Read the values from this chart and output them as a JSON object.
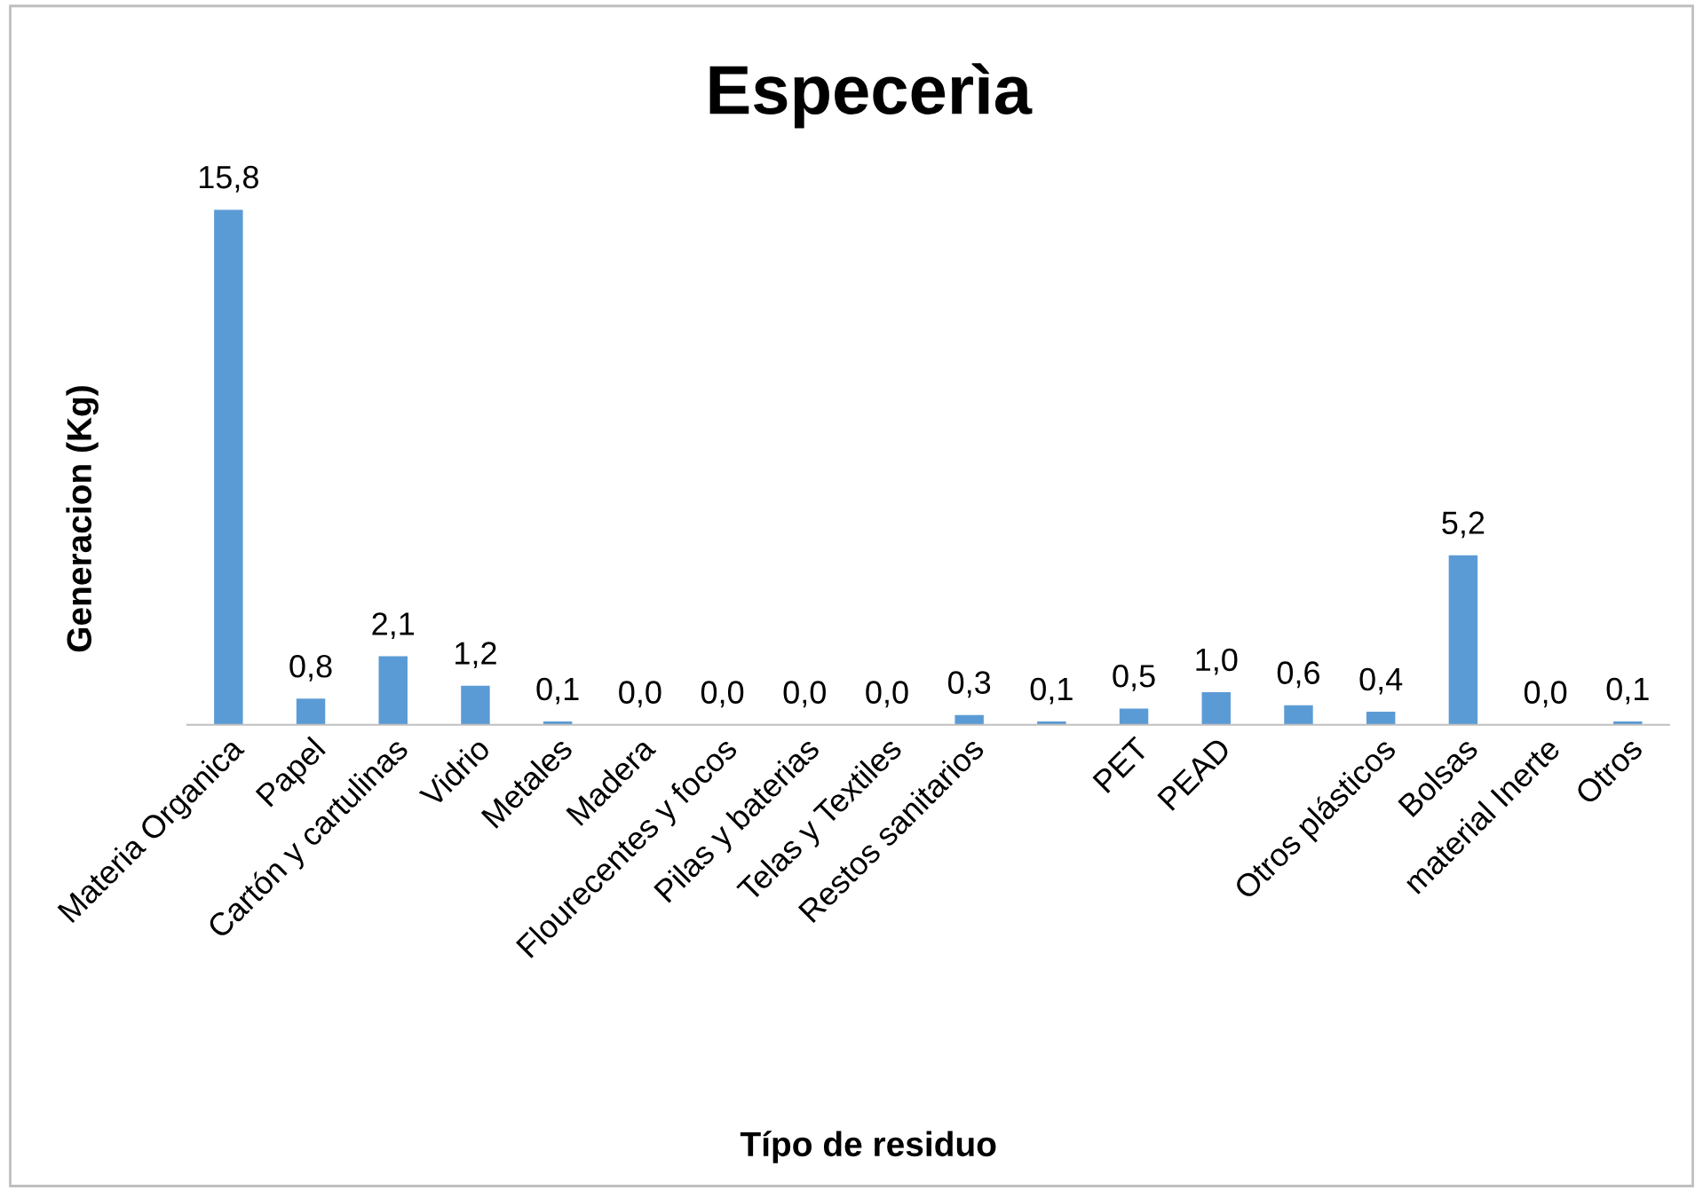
{
  "chart_data": {
    "type": "bar",
    "title": "Especerìa",
    "xlabel": "Típo de residuo",
    "ylabel": "Generacion (Kg)",
    "categories": [
      "Materia Organica",
      "Papel",
      "Cartón y cartulinas",
      "Vidrio",
      "Metales",
      "Madera",
      "Flourecentes y focos",
      "Pilas y baterias",
      "Telas y Textiles",
      "Restos sanitarios",
      null,
      "PET",
      "PEAD",
      null,
      "Otros plásticos",
      "Bolsas",
      "material Inerte",
      "Otros"
    ],
    "values": [
      15.8,
      0.8,
      2.1,
      1.2,
      0.1,
      0.0,
      0.0,
      0.0,
      0.0,
      0.3,
      0.1,
      0.5,
      1.0,
      0.6,
      0.4,
      5.2,
      0.0,
      0.1
    ],
    "value_labels": [
      "15,8",
      "0,8",
      "2,1",
      "1,2",
      "0,1",
      "0,0",
      "0,0",
      "0,0",
      "0,0",
      "0,3",
      "0,1",
      "0,5",
      "1,0",
      "0,6",
      "0,4",
      "5,2",
      "0,0",
      "0,1"
    ],
    "color": "#5b9bd5",
    "grid": false,
    "legend": false
  }
}
